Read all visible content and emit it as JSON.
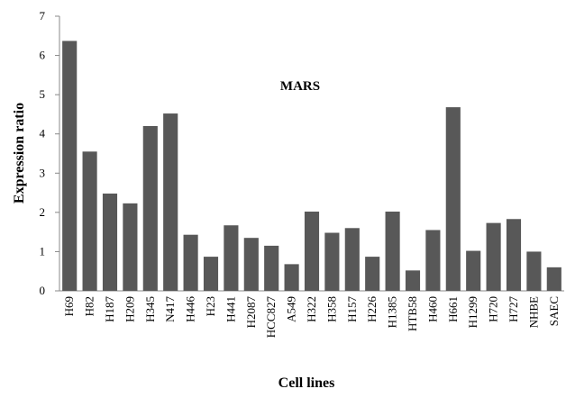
{
  "chart_data": {
    "type": "bar",
    "title": "MARS",
    "x_label": "Cell lines",
    "y_label": "Expression ratio",
    "categories": [
      "H69",
      "H82",
      "H187",
      "H209",
      "H345",
      "N417",
      "H446",
      "H23",
      "H441",
      "H2087",
      "HCC827",
      "A549",
      "H322",
      "H358",
      "H157",
      "H226",
      "H1385",
      "HTB58",
      "H460",
      "H661",
      "H1299",
      "H720",
      "H727",
      "NHBE",
      "SAEC"
    ],
    "values": [
      6.37,
      3.55,
      2.48,
      2.23,
      4.2,
      4.52,
      1.43,
      0.87,
      1.67,
      1.35,
      1.15,
      0.68,
      2.02,
      1.48,
      1.6,
      0.87,
      2.02,
      0.52,
      1.55,
      4.68,
      1.02,
      1.73,
      1.83,
      1.0,
      0.6
    ],
    "color": "#585858",
    "ylim": [
      0,
      7
    ],
    "yticks": [
      0,
      1,
      2,
      3,
      4,
      5,
      6,
      7
    ],
    "grid": false
  }
}
